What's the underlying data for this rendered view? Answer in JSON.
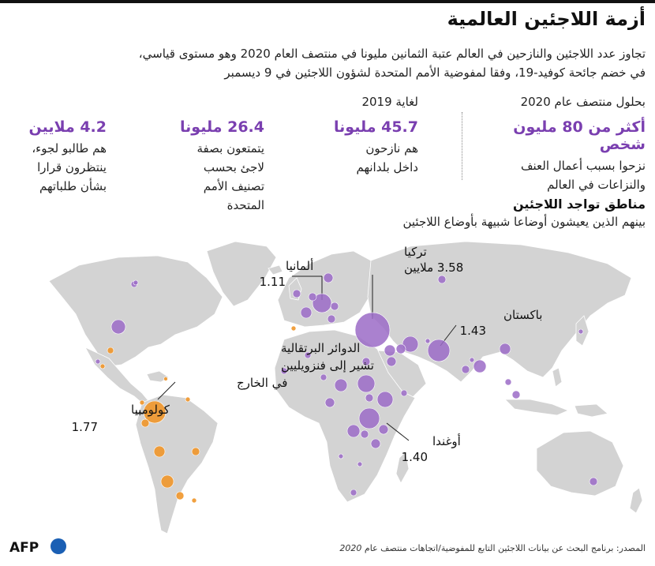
{
  "title": "أزمة اللاجئين العالمية",
  "subtitle_line1": "تجاوز عدد اللاجئين والنازحين في العالم عتبة الثمانين مليونا في منتصف العام 2020 وهو مستوى قياسي،",
  "subtitle_line2": "في خضم جائحة كوفيد-19، وفقا لمفوضية الأمم المتحدة لشؤون اللاجئين في 9 ديسمبر",
  "stats": [
    {
      "head": "بحلول منتصف عام 2020",
      "big": "أكثر من 80 مليون شخص",
      "desc": "نزحوا بسبب أعمال العنف\nوالنزاعات في العالم"
    },
    {
      "head": "لغاية 2019",
      "big": "45.7 مليونا",
      "desc": "هم نازحون\nداخل بلدانهم"
    },
    {
      "head": "",
      "big": "26.4 مليونا",
      "desc": "يتمتعون بصفة\nلاجئ بحسب\nتصنيف الأمم\nالمتحدة"
    },
    {
      "head": "",
      "big": "4.2 ملايين",
      "desc": "هم طالبو لجوء،\nينتظرون قرارا\nبشأن طلباتهم"
    }
  ],
  "map_section": {
    "title": "مناطق تواجد اللاجئين",
    "subtitle": "بينهم الذين يعيشون أوضاعا شبيهة بأوضاع اللاجئين"
  },
  "map": {
    "colors": {
      "land": "#d3d3d3",
      "border": "#ffffff",
      "refugees": "#9b6bc7",
      "venezuelans": "#f0962a",
      "water": "#ffffff"
    },
    "labels": {
      "turkey_name": "تركيا",
      "turkey_value": "3.58 ملايين",
      "germany_name": "ألمانيا",
      "germany_value": "1.11",
      "pakistan_name": "باكستان",
      "pakistan_value": "1.43",
      "uganda_name": "أوغندا",
      "uganda_value": "1.40",
      "colombia_name": "كولومبيا",
      "colombia_value": "1.77",
      "orange_note_1": "الدوائر البرتقالية",
      "orange_note_2": "تشير إلى فنزويليين",
      "orange_note_3": "في الخارج"
    }
  },
  "source_text": "المصدر: برنامج البحث عن بيانات اللاجئين التابع للمفوضية/اتجاهات منتصف عام ",
  "source_year": "2020",
  "logo": "AFP"
}
